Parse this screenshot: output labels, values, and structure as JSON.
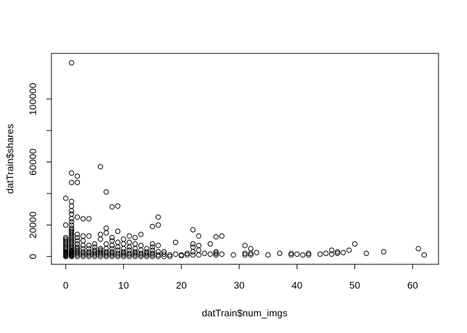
{
  "chart_data": {
    "type": "scatter",
    "xlabel": "datTrain$num_imgs",
    "ylabel": "datTrain$shares",
    "x": [
      0,
      0,
      0,
      0,
      0,
      0,
      0,
      0,
      0,
      0,
      0,
      0,
      0,
      0,
      0,
      0,
      0,
      0,
      1,
      1,
      1,
      1,
      1,
      1,
      1,
      1,
      1,
      1,
      1,
      1,
      1,
      1,
      1,
      1,
      1,
      1,
      1,
      1,
      1,
      1,
      1,
      1,
      1,
      1,
      1,
      1,
      1,
      1,
      1,
      1,
      1,
      2,
      2,
      2,
      2,
      2,
      2,
      2,
      2,
      2,
      2,
      2,
      2,
      2,
      2,
      3,
      3,
      3,
      3,
      3,
      3,
      3,
      3,
      3,
      4,
      4,
      4,
      4,
      4,
      4,
      4,
      4,
      5,
      5,
      5,
      5,
      5,
      5,
      5,
      6,
      6,
      6,
      6,
      6,
      6,
      6,
      6,
      6,
      7,
      7,
      7,
      7,
      7,
      7,
      7,
      7,
      7,
      8,
      8,
      8,
      8,
      8,
      8,
      8,
      8,
      8,
      9,
      9,
      9,
      9,
      9,
      9,
      9,
      9,
      10,
      10,
      10,
      10,
      10,
      10,
      10,
      11,
      11,
      11,
      11,
      11,
      11,
      11,
      12,
      12,
      12,
      12,
      12,
      12,
      12,
      13,
      13,
      13,
      13,
      13,
      13,
      14,
      14,
      14,
      14,
      14,
      15,
      15,
      15,
      15,
      15,
      15,
      15,
      16,
      16,
      16,
      16,
      16,
      16,
      17,
      17,
      17,
      18,
      18,
      19,
      19,
      20,
      20,
      21,
      21,
      22,
      22,
      22,
      22,
      22,
      23,
      23,
      23,
      23,
      24,
      25,
      25,
      26,
      26,
      26,
      26,
      27,
      27,
      29,
      31,
      31,
      31,
      32,
      32,
      32,
      33,
      35,
      37,
      39,
      39,
      40,
      41,
      42,
      42,
      44,
      45,
      46,
      46,
      47,
      47,
      48,
      49,
      50,
      52,
      55,
      61,
      62
    ],
    "values": [
      0,
      500,
      1000,
      1500,
      2000,
      2500,
      3000,
      4000,
      5000,
      6000,
      7000,
      8000,
      9000,
      10000,
      11000,
      12000,
      20000,
      37000,
      0,
      500,
      1000,
      1500,
      2000,
      2500,
      3000,
      3500,
      4000,
      5000,
      6000,
      7000,
      8000,
      9000,
      10000,
      11000,
      12000,
      13000,
      14000,
      15000,
      16000,
      17000,
      18000,
      20000,
      22000,
      24000,
      27000,
      29000,
      32000,
      35000,
      47000,
      53000,
      123000,
      0,
      1000,
      2000,
      3000,
      4000,
      5000,
      6000,
      8000,
      10000,
      12000,
      14000,
      25000,
      47000,
      51000,
      0,
      1000,
      2000,
      3000,
      5000,
      7000,
      10000,
      13000,
      24000,
      0,
      1000,
      2000,
      3000,
      5000,
      7000,
      13000,
      24000,
      0,
      1000,
      2000,
      3000,
      4000,
      6000,
      8000,
      0,
      1000,
      2000,
      3000,
      4000,
      5000,
      11000,
      14000,
      57000,
      0,
      1000,
      2000,
      3000,
      5000,
      8000,
      15000,
      18000,
      41000,
      0,
      1000,
      2000,
      3000,
      5000,
      7000,
      10000,
      12000,
      31500,
      0,
      1000,
      2000,
      4000,
      6000,
      9000,
      16000,
      32000,
      0,
      1000,
      2000,
      3000,
      5000,
      8000,
      11000,
      0,
      1000,
      2000,
      4000,
      6000,
      9000,
      13000,
      0,
      1000,
      2000,
      3000,
      5000,
      8000,
      12000,
      0,
      1000,
      2000,
      4000,
      7000,
      14000,
      0,
      1000,
      2000,
      3000,
      5000,
      0,
      1000,
      2000,
      4000,
      6000,
      8000,
      19000,
      0,
      1000,
      3000,
      7000,
      20000,
      25000,
      0,
      1500,
      3000,
      0,
      1000,
      1500,
      9000,
      500,
      1000,
      1000,
      2000,
      1000,
      3000,
      6000,
      8000,
      17000,
      1000,
      4000,
      7000,
      13000,
      2000,
      1500,
      8000,
      1000,
      2000,
      3000,
      12500,
      1500,
      13000,
      1000,
      1000,
      2000,
      7000,
      1000,
      2000,
      5000,
      2500,
      1000,
      2000,
      1000,
      2000,
      1500,
      1000,
      1000,
      2000,
      1500,
      2000,
      1500,
      4000,
      2000,
      3000,
      2500,
      4000,
      8000,
      2000,
      3000,
      5000,
      1000
    ],
    "color": "#000000",
    "xlim": [
      -2.48,
      64.48
    ],
    "ylim": [
      -4960,
      128960
    ],
    "xticks": [
      0,
      10,
      20,
      30,
      40,
      50,
      60
    ],
    "yticks": [
      0,
      20000,
      {
        "value": 40000
      },
      60000,
      {
        "value": 80000
      },
      100000
    ]
  }
}
